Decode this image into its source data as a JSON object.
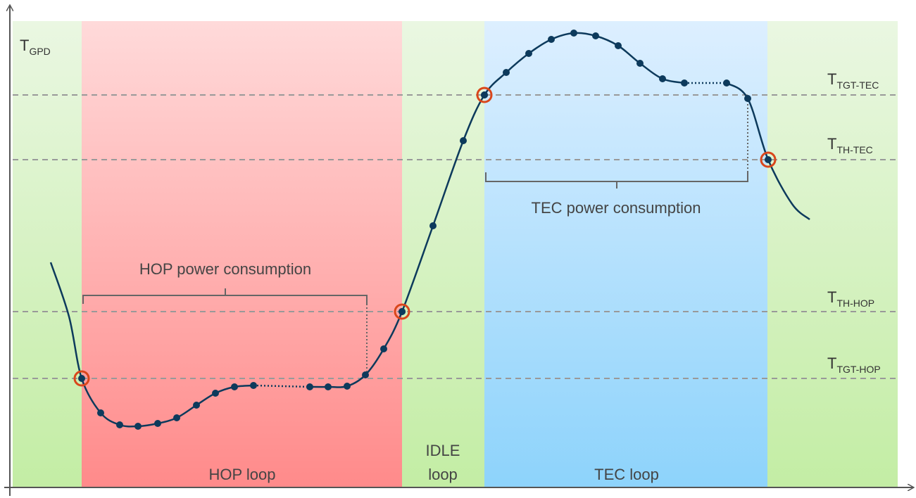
{
  "axis_label": {
    "main": "T",
    "sub": "GPD"
  },
  "thresholds": [
    {
      "main": "T",
      "sub": "TGT-TEC"
    },
    {
      "main": "T",
      "sub": "TH-TEC"
    },
    {
      "main": "T",
      "sub": "TH-HOP"
    },
    {
      "main": "T",
      "sub": "TGT-HOP"
    }
  ],
  "annotations": {
    "hop_power": "HOP power consumption",
    "tec_power": "TEC power consumption"
  },
  "regions": {
    "hop": "HOP loop",
    "idle": [
      "IDLE",
      "loop"
    ],
    "tec": "TEC loop"
  }
}
